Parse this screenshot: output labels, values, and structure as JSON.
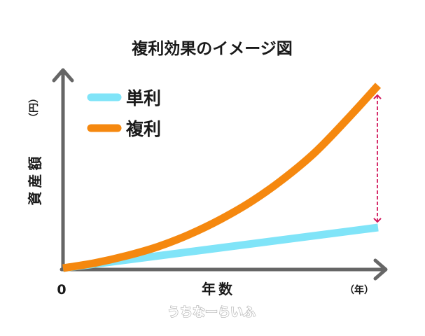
{
  "chart_data": {
    "type": "line",
    "title": "複利効果のイメージ図",
    "xlabel": "年数",
    "ylabel": "資産額",
    "xunit": "（年）",
    "yunit": "（円）",
    "x_origin_label": "0",
    "series": [
      {
        "name": "単利",
        "color": "#80e4f8",
        "x": [
          0,
          1
        ],
        "y": [
          0,
          0.2
        ]
      },
      {
        "name": "複利",
        "color": "#f5880f",
        "x": [
          0,
          0.1,
          0.2,
          0.3,
          0.4,
          0.5,
          0.6,
          0.7,
          0.8,
          0.9,
          1.0
        ],
        "y": [
          0,
          0.025,
          0.06,
          0.105,
          0.165,
          0.24,
          0.33,
          0.44,
          0.57,
          0.73,
          0.9
        ]
      }
    ],
    "annotation": {
      "type": "double-arrow",
      "color": "#d1185c",
      "x": 1.0,
      "from_y": 0.2,
      "to_y": 0.9
    },
    "legend": "top-left",
    "grid": false
  },
  "watermark": "うちなーらいふ",
  "colors": {
    "axis": "#666666",
    "text": "#1a1a1a"
  }
}
